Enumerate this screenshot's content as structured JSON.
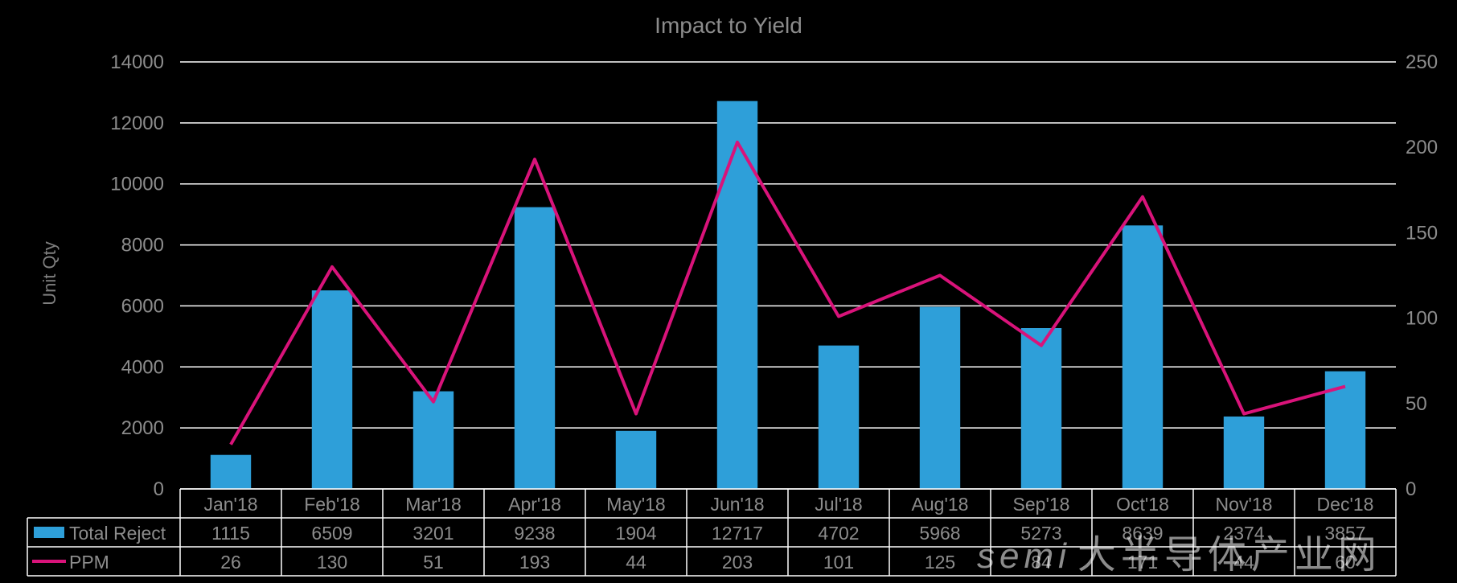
{
  "chart_data": {
    "type": "bar",
    "title": "Impact to Yield",
    "ylabel": "Unit Qty",
    "ylim": [
      0,
      14000
    ],
    "y_ticks": [
      0,
      2000,
      4000,
      6000,
      8000,
      10000,
      12000,
      14000
    ],
    "y2lim": [
      0,
      250
    ],
    "y2_ticks": [
      0,
      50,
      100,
      150,
      200,
      250
    ],
    "grid": true,
    "categories": [
      "Jan'18",
      "Feb'18",
      "Mar'18",
      "Apr'18",
      "May'18",
      "Jun'18",
      "Jul'18",
      "Aug'18",
      "Sep'18",
      "Oct'18",
      "Nov'18",
      "Dec'18"
    ],
    "series": [
      {
        "name": "Total Reject",
        "type": "bar",
        "axis": "left",
        "color": "#2e9fd9",
        "values": [
          1115,
          6509,
          3201,
          9238,
          1904,
          12717,
          4702,
          5968,
          5273,
          8639,
          2374,
          3857
        ]
      },
      {
        "name": "PPM",
        "type": "line",
        "axis": "right",
        "color": "#d9137a",
        "values": [
          26,
          130,
          51,
          193,
          44,
          203,
          101,
          125,
          84,
          171,
          44,
          60
        ]
      }
    ],
    "data_table": true
  },
  "watermark": {
    "brand": "semi",
    "text": "大半导体产业网"
  }
}
